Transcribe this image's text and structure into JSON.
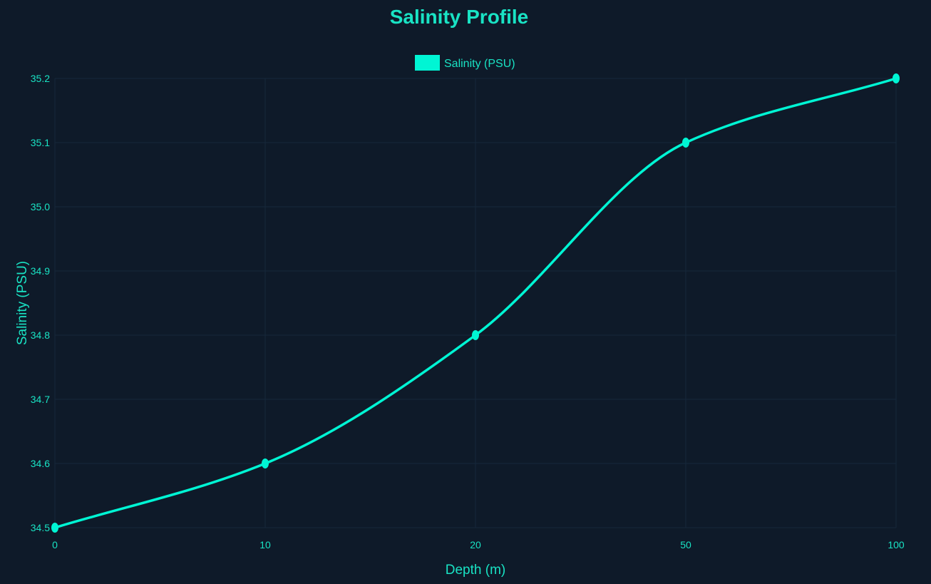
{
  "colors": {
    "background": "#0e1a29",
    "accent": "#00f5d4",
    "text": "#19e3c4",
    "grid": "#16283a"
  },
  "legend": {
    "label": "Salinity (PSU)",
    "position": "top-center"
  },
  "chart_data": {
    "type": "line",
    "title": "Salinity Profile",
    "xlabel": "Depth (m)",
    "ylabel": "Salinity (PSU)",
    "categories": [
      "0",
      "10",
      "20",
      "50",
      "100"
    ],
    "series": [
      {
        "name": "Salinity (PSU)",
        "values": [
          34.5,
          34.6,
          34.8,
          35.1,
          35.2
        ]
      }
    ],
    "ylim": [
      34.5,
      35.2
    ],
    "yticks": [
      "34.5",
      "34.6",
      "34.7",
      "34.8",
      "34.9",
      "35.0",
      "35.1",
      "35.2"
    ],
    "xaxis_scale": "category",
    "grid": true,
    "smooth": true,
    "markers": true
  }
}
